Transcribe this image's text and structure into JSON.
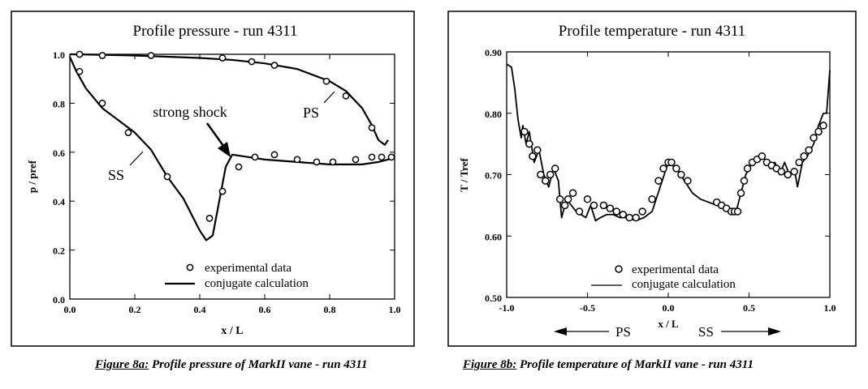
{
  "chart_data": [
    {
      "type": "line",
      "title": "Profile pressure - run 4311",
      "xlabel": "x / L",
      "ylabel": "p / pref",
      "xlim": [
        0.0,
        1.0
      ],
      "ylim": [
        0.0,
        1.0
      ],
      "xticks": [
        "0.0",
        "0.2",
        "0.4",
        "0.6",
        "0.8",
        "1.0"
      ],
      "yticks": [
        "0.0",
        "0.2",
        "0.4",
        "0.6",
        "0.8",
        "1.0"
      ],
      "legend_position": "bottom-center",
      "annotations": {
        "shock": "strong shock",
        "ps": "PS",
        "ss": "SS"
      },
      "series": [
        {
          "name": "experimental data",
          "style": "markers",
          "x": [
            0.03,
            0.1,
            0.18,
            0.3,
            0.43,
            0.47,
            0.52,
            0.57,
            0.63,
            0.7,
            0.76,
            0.81,
            0.88,
            0.93,
            0.96,
            0.99,
            0.03,
            0.1,
            0.25,
            0.47,
            0.56,
            0.63,
            0.79,
            0.85,
            0.93
          ],
          "y": [
            0.93,
            0.8,
            0.68,
            0.5,
            0.33,
            0.44,
            0.54,
            0.58,
            0.59,
            0.57,
            0.56,
            0.56,
            0.57,
            0.58,
            0.58,
            0.58,
            1.0,
            0.995,
            0.995,
            0.985,
            0.97,
            0.955,
            0.89,
            0.83,
            0.7
          ]
        },
        {
          "name": "conjugate calculation",
          "style": "line",
          "x": [
            0.0,
            0.02,
            0.05,
            0.1,
            0.15,
            0.2,
            0.25,
            0.3,
            0.35,
            0.4,
            0.42,
            0.44,
            0.46,
            0.48,
            0.5,
            0.55,
            0.6,
            0.7,
            0.8,
            0.9,
            0.95,
            0.98,
            1.0
          ],
          "y": [
            0.99,
            0.93,
            0.86,
            0.78,
            0.73,
            0.68,
            0.61,
            0.5,
            0.41,
            0.28,
            0.24,
            0.26,
            0.4,
            0.54,
            0.59,
            0.58,
            0.57,
            0.56,
            0.55,
            0.55,
            0.56,
            0.57,
            0.58
          ],
          "x2": [
            0.0,
            0.1,
            0.2,
            0.3,
            0.4,
            0.5,
            0.6,
            0.7,
            0.8,
            0.85,
            0.9,
            0.93,
            0.95,
            0.97,
            0.98
          ],
          "y2": [
            1.0,
            0.998,
            0.995,
            0.99,
            0.985,
            0.977,
            0.963,
            0.94,
            0.89,
            0.85,
            0.78,
            0.71,
            0.65,
            0.63,
            0.65
          ]
        }
      ]
    },
    {
      "type": "line",
      "title": "Profile temperature - run 4311",
      "xlabel": "x / L",
      "ylabel": "T / Tref",
      "xlim": [
        -1.0,
        1.0
      ],
      "ylim": [
        0.5,
        0.9
      ],
      "xticks": [
        "-1.0",
        "-0.5",
        "0.0",
        "0.5",
        "1.0"
      ],
      "yticks": [
        "0.50",
        "0.60",
        "0.70",
        "0.80",
        "0.90"
      ],
      "legend_position": "bottom-center",
      "annotations": {
        "ps": "PS",
        "ss": "SS"
      },
      "series": [
        {
          "name": "experimental data",
          "style": "markers",
          "x": [
            -0.89,
            -0.86,
            -0.84,
            -0.81,
            -0.79,
            -0.76,
            -0.73,
            -0.7,
            -0.67,
            -0.64,
            -0.62,
            -0.59,
            -0.55,
            -0.5,
            -0.46,
            -0.4,
            -0.36,
            -0.32,
            -0.28,
            -0.24,
            -0.2,
            -0.16,
            -0.1,
            -0.06,
            -0.03,
            0.0,
            0.02,
            0.05,
            0.08,
            0.12,
            0.3,
            0.33,
            0.36,
            0.39,
            0.41,
            0.43,
            0.45,
            0.47,
            0.49,
            0.52,
            0.55,
            0.58,
            0.61,
            0.64,
            0.67,
            0.7,
            0.74,
            0.78,
            0.81,
            0.84,
            0.87,
            0.9,
            0.93,
            0.96
          ],
          "y": [
            0.77,
            0.75,
            0.73,
            0.74,
            0.7,
            0.69,
            0.7,
            0.71,
            0.66,
            0.65,
            0.66,
            0.67,
            0.64,
            0.66,
            0.65,
            0.65,
            0.645,
            0.64,
            0.635,
            0.63,
            0.63,
            0.64,
            0.66,
            0.69,
            0.71,
            0.72,
            0.72,
            0.71,
            0.7,
            0.69,
            0.655,
            0.65,
            0.645,
            0.64,
            0.64,
            0.64,
            0.67,
            0.69,
            0.71,
            0.72,
            0.725,
            0.73,
            0.72,
            0.715,
            0.71,
            0.705,
            0.7,
            0.705,
            0.72,
            0.73,
            0.74,
            0.76,
            0.77,
            0.78
          ]
        },
        {
          "name": "conjugate calculation",
          "style": "line",
          "x": [
            -1.0,
            -0.97,
            -0.95,
            -0.93,
            -0.91,
            -0.9,
            -0.88,
            -0.86,
            -0.83,
            -0.8,
            -0.77,
            -0.74,
            -0.71,
            -0.68,
            -0.66,
            -0.63,
            -0.6,
            -0.57,
            -0.54,
            -0.51,
            -0.48,
            -0.45,
            -0.42,
            -0.38,
            -0.34,
            -0.3,
            -0.25,
            -0.2,
            -0.15,
            -0.1,
            -0.05,
            0.0,
            0.05,
            0.1,
            0.15,
            0.2,
            0.25,
            0.3,
            0.35,
            0.4,
            0.42,
            0.45,
            0.48,
            0.52,
            0.56,
            0.6,
            0.63,
            0.66,
            0.69,
            0.72,
            0.75,
            0.78,
            0.8,
            0.83,
            0.86,
            0.9,
            0.93,
            0.96,
            0.98,
            1.0
          ],
          "y": [
            0.88,
            0.875,
            0.84,
            0.79,
            0.76,
            0.78,
            0.75,
            0.77,
            0.72,
            0.74,
            0.7,
            0.68,
            0.71,
            0.69,
            0.63,
            0.66,
            0.65,
            0.64,
            0.635,
            0.63,
            0.65,
            0.625,
            0.63,
            0.635,
            0.635,
            0.63,
            0.63,
            0.625,
            0.63,
            0.64,
            0.68,
            0.72,
            0.71,
            0.69,
            0.67,
            0.66,
            0.655,
            0.65,
            0.645,
            0.64,
            0.64,
            0.67,
            0.7,
            0.72,
            0.73,
            0.725,
            0.71,
            0.72,
            0.7,
            0.72,
            0.7,
            0.71,
            0.68,
            0.72,
            0.73,
            0.75,
            0.78,
            0.8,
            0.8,
            0.87
          ]
        }
      ]
    }
  ],
  "captions": [
    {
      "label": "Figure 8a:",
      "text": " Profile pressure of MarkII vane - run 4311"
    },
    {
      "label": "Figure 8b:",
      "text": " Profile temperature of MarkII vane - run 4311"
    }
  ]
}
